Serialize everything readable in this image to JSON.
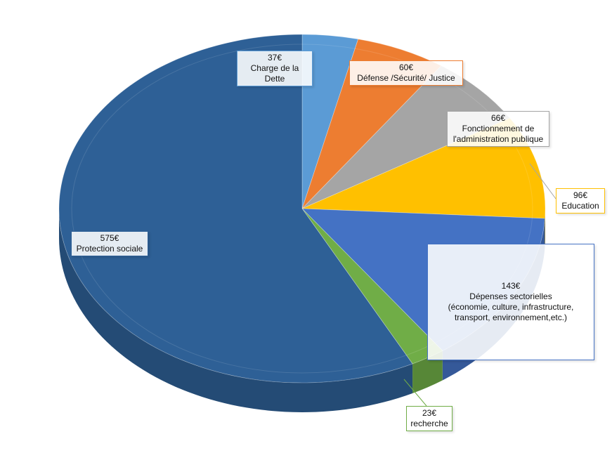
{
  "chart_data": {
    "type": "pie",
    "title": "",
    "slices": [
      {
        "value_label": "37€",
        "value": 37,
        "label": "Charge de la Dette",
        "color": "#5b9bd5"
      },
      {
        "value_label": "60€",
        "value": 60,
        "label": "Défense /Sécurité/  Justice",
        "color": "#ed7d31"
      },
      {
        "value_label": "66€",
        "value": 66,
        "label_lines": [
          "Fonctionnement  de",
          "l'administration publique"
        ],
        "color": "#a5a5a5"
      },
      {
        "value_label": "96€",
        "value": 96,
        "label": "Education",
        "color": "#ffc000"
      },
      {
        "value_label": "143€",
        "value": 143,
        "label_lines": [
          "Dépenses sectorielles",
          "(économie, culture, infrastructure,",
          "transport, environnement,etc.)"
        ],
        "color": "#4472c4"
      },
      {
        "value_label": "23€",
        "value": 23,
        "label": "recherche",
        "color": "#70ad47"
      },
      {
        "value_label": "575€",
        "value": 575,
        "label": "Protection sociale",
        "color": "#2e6096"
      }
    ]
  }
}
